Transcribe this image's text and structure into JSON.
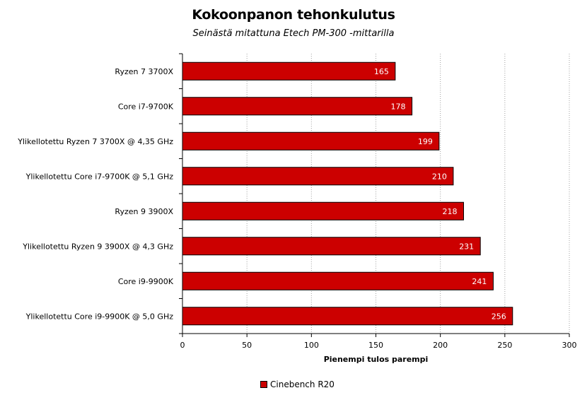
{
  "chart_data": {
    "type": "bar",
    "orientation": "horizontal",
    "title": "Kokoonpanon tehonkulutus",
    "subtitle": "Seinästä mitattuna Etech PM-300 -mittarilla",
    "categories": [
      "Ryzen 7 3700X",
      "Core i7-9700K",
      "Ylikellotettu Ryzen 7 3700X @ 4,35 GHz",
      "Ylikellotettu Core i7-9700K @ 5,1 GHz",
      "Ryzen 9 3900X",
      "Ylikellotettu Ryzen 9 3900X @ 4,3 GHz",
      "Core i9-9900K",
      "Ylikellotettu Core i9-9900K @ 5,0 GHz"
    ],
    "series": [
      {
        "name": "Cinebench R20",
        "values": [
          165,
          178,
          199,
          210,
          218,
          231,
          241,
          256
        ]
      }
    ],
    "xlabel": "Pienempi tulos parempi",
    "xlim": [
      0,
      300
    ],
    "xticks": [
      0,
      50,
      100,
      150,
      200,
      250,
      300
    ],
    "grid": true,
    "legend_position": "bottom",
    "colors": {
      "bar": "#cc0000",
      "plot_background": "#ffffff",
      "grid": "#a0a0a0"
    }
  }
}
